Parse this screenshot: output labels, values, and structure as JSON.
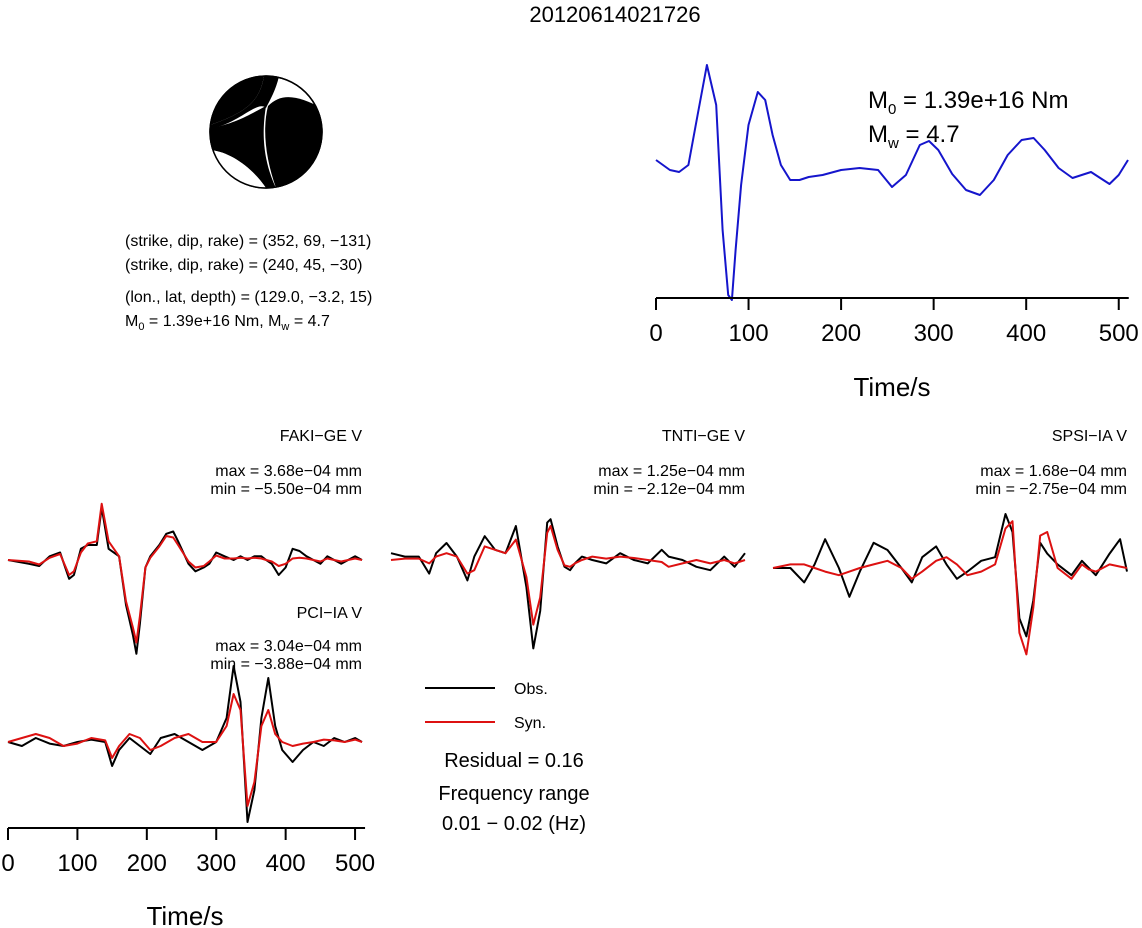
{
  "title": "20120614021726",
  "colors": {
    "observed": "#000000",
    "synthetic": "#dd1111",
    "stf": "#1515cc",
    "beachball_fill": "#000000"
  },
  "source": {
    "planes": [
      "(strike, dip, rake) = (352, 69, −131)",
      "(strike, dip, rake) = (240, 45, −30)"
    ],
    "location": "(lon., lat, depth) = (129.0, −3.2, 15)",
    "moment_main": "M",
    "moment_sub": "0",
    "moment_rest": " = 1.39e+16 Nm, M",
    "mw_sub": "w",
    "mw_rest": " = 4.7",
    "strike1": 352,
    "dip1": 69,
    "rake1": -131,
    "strike2": 240,
    "dip2": 45,
    "rake2": -30
  },
  "stf_panel": {
    "m0_label": "M",
    "m0_sub": "0",
    "m0_value": " = 1.39e+16 Nm",
    "mw_label": "M",
    "mw_sub": "w",
    "mw_value": " = 4.7",
    "xlabel": "Time/s"
  },
  "legend": {
    "obs": "Obs.",
    "syn": "Syn.",
    "residual": "Residual = 0.16",
    "freq_title": "Frequency range",
    "freq_value": "0.01 − 0.02 (Hz)"
  },
  "stations": [
    {
      "name": "FAKI−GE V",
      "max": "max = 3.68e−04 mm",
      "min": "min = −5.50e−04 mm"
    },
    {
      "name": "TNTI−GE V",
      "max": "max = 1.25e−04 mm",
      "min": "min = −2.12e−04 mm"
    },
    {
      "name": "SPSI−IA V",
      "max": "max = 1.68e−04 mm",
      "min": "min = −2.75e−04 mm"
    },
    {
      "name": "PCI−IA V",
      "max": "max = 3.04e−04 mm",
      "min": "min = −3.88e−04 mm"
    }
  ],
  "chart_data": [
    {
      "type": "line",
      "name": "source time function",
      "xlabel": "Time/s",
      "ylabel": "",
      "xlim": [
        0,
        510
      ],
      "xticks": [
        0,
        100,
        200,
        300,
        400,
        500
      ],
      "series": [
        {
          "x": [
            0,
            15,
            25,
            35,
            45,
            55,
            65,
            72,
            78,
            82,
            86,
            92,
            100,
            110,
            118,
            126,
            135,
            145,
            155,
            165,
            180,
            200,
            220,
            240,
            255,
            270,
            285,
            295,
            305,
            320,
            335,
            350,
            365,
            380,
            395,
            408,
            420,
            435,
            450,
            460,
            470,
            480,
            490,
            500,
            510
          ],
          "y": [
            0,
            -0.1,
            -0.12,
            -0.05,
            0.45,
            0.95,
            0.55,
            -0.7,
            -1.35,
            -1.4,
            -0.9,
            -0.25,
            0.35,
            0.68,
            0.6,
            0.25,
            -0.05,
            -0.2,
            -0.2,
            -0.17,
            -0.15,
            -0.1,
            -0.08,
            -0.1,
            -0.27,
            -0.15,
            0.15,
            0.19,
            0.1,
            -0.14,
            -0.3,
            -0.35,
            -0.2,
            0.05,
            0.2,
            0.22,
            0.1,
            -0.08,
            -0.18,
            -0.15,
            -0.12,
            -0.18,
            -0.24,
            -0.15,
            0
          ]
        }
      ]
    },
    {
      "type": "line",
      "name": "FAKI-GE V",
      "xlim": [
        0,
        510
      ],
      "series": [
        {
          "name": "Obs.",
          "x": [
            0,
            30,
            45,
            60,
            75,
            88,
            95,
            105,
            115,
            128,
            135,
            145,
            160,
            170,
            180,
            185,
            190,
            198,
            205,
            218,
            228,
            238,
            245,
            260,
            270,
            282,
            290,
            300,
            312,
            325,
            335,
            345,
            355,
            365,
            372,
            380,
            390,
            400,
            410,
            420,
            430,
            440,
            450,
            460,
            470,
            480,
            490,
            500,
            510
          ],
          "y": [
            0,
            -0.05,
            -0.08,
            0.05,
            0.1,
            -0.25,
            -0.2,
            0.15,
            0.2,
            0.2,
            0.7,
            0.15,
            0.05,
            -0.6,
            -1.0,
            -1.25,
            -0.85,
            -0.1,
            0.05,
            0.2,
            0.35,
            0.38,
            0.25,
            -0.05,
            -0.15,
            -0.1,
            -0.05,
            0.1,
            0.05,
            0.0,
            0.05,
            0.0,
            0.05,
            0.05,
            0.0,
            -0.05,
            -0.2,
            -0.1,
            0.15,
            0.12,
            0.05,
            0.0,
            -0.05,
            0.05,
            0.0,
            -0.05,
            0.0,
            0.05,
            0.0
          ]
        },
        {
          "name": "Syn.",
          "x": [
            0,
            30,
            45,
            60,
            75,
            88,
            95,
            105,
            115,
            128,
            135,
            145,
            160,
            170,
            180,
            185,
            190,
            198,
            205,
            218,
            228,
            238,
            245,
            260,
            270,
            282,
            290,
            300,
            312,
            325,
            335,
            345,
            355,
            365,
            372,
            380,
            390,
            400,
            410,
            420,
            430,
            440,
            450,
            460,
            470,
            480,
            490,
            500,
            510
          ],
          "y": [
            0,
            -0.02,
            -0.06,
            0.03,
            0.08,
            -0.2,
            -0.15,
            0.1,
            0.22,
            0.25,
            0.75,
            0.25,
            0.05,
            -0.55,
            -0.9,
            -1.1,
            -0.75,
            -0.1,
            0.03,
            0.18,
            0.32,
            0.3,
            0.2,
            -0.02,
            -0.1,
            -0.08,
            -0.02,
            0.06,
            0.02,
            0.02,
            0.03,
            0.02,
            0.03,
            0.02,
            0.0,
            -0.02,
            -0.08,
            -0.05,
            0.02,
            0.03,
            0.02,
            0.0,
            -0.02,
            0.02,
            0.0,
            -0.02,
            0.0,
            0.02,
            0.0
          ]
        }
      ]
    },
    {
      "type": "line",
      "name": "TNTI-GE V",
      "xlim": [
        0,
        510
      ],
      "series": [
        {
          "name": "Obs.",
          "x": [
            0,
            20,
            40,
            55,
            65,
            80,
            95,
            110,
            120,
            135,
            150,
            165,
            180,
            195,
            205,
            215,
            225,
            230,
            240,
            250,
            258,
            265,
            275,
            290,
            310,
            330,
            350,
            370,
            390,
            400,
            420,
            440,
            460,
            480,
            495,
            510
          ],
          "y": [
            0.1,
            0.05,
            0.05,
            -0.2,
            0.1,
            0.25,
            0.05,
            -0.3,
            0.05,
            0.35,
            0.15,
            0.1,
            0.5,
            -0.4,
            -1.3,
            -0.75,
            0.55,
            0.6,
            0.2,
            -0.1,
            -0.15,
            -0.05,
            0.05,
            0.0,
            -0.05,
            0.1,
            0.0,
            -0.05,
            0.15,
            0.05,
            0.0,
            -0.1,
            -0.15,
            0.05,
            -0.1,
            0.1
          ]
        },
        {
          "name": "Syn.",
          "x": [
            0,
            20,
            40,
            55,
            65,
            80,
            95,
            110,
            120,
            135,
            150,
            165,
            180,
            195,
            205,
            215,
            225,
            230,
            240,
            250,
            258,
            265,
            275,
            290,
            310,
            330,
            350,
            370,
            390,
            400,
            420,
            440,
            460,
            480,
            495,
            510
          ],
          "y": [
            0.0,
            0.02,
            0.02,
            -0.05,
            0.05,
            0.1,
            0.05,
            -0.2,
            -0.15,
            0.2,
            0.15,
            0.1,
            0.3,
            -0.25,
            -0.95,
            -0.55,
            0.4,
            0.5,
            0.15,
            -0.08,
            -0.1,
            -0.05,
            0.0,
            0.05,
            0.02,
            0.05,
            0.03,
            0.0,
            -0.03,
            -0.1,
            -0.05,
            0.0,
            -0.05,
            0.0,
            -0.05,
            0.0
          ]
        }
      ]
    },
    {
      "type": "line",
      "name": "SPSI-IA V",
      "xlim": [
        0,
        510
      ],
      "series": [
        {
          "name": "Obs.",
          "x": [
            0,
            25,
            45,
            60,
            75,
            95,
            110,
            125,
            145,
            165,
            185,
            200,
            215,
            235,
            250,
            265,
            280,
            300,
            320,
            335,
            345,
            355,
            365,
            375,
            385,
            395,
            410,
            430,
            445,
            455,
            465,
            475,
            485,
            500,
            510
          ],
          "y": [
            0.0,
            0.0,
            -0.2,
            0.05,
            0.4,
            0.0,
            -0.4,
            -0.05,
            0.35,
            0.25,
            0.0,
            -0.2,
            0.15,
            0.3,
            0.05,
            -0.15,
            -0.05,
            0.1,
            0.15,
            0.75,
            0.5,
            -0.7,
            -0.95,
            -0.45,
            0.35,
            0.2,
            0.05,
            -0.1,
            0.1,
            0.0,
            -0.1,
            0.05,
            0.2,
            0.4,
            -0.05
          ]
        },
        {
          "name": "Syn.",
          "x": [
            0,
            25,
            45,
            60,
            75,
            95,
            110,
            125,
            145,
            165,
            185,
            200,
            215,
            235,
            250,
            265,
            280,
            300,
            320,
            335,
            345,
            355,
            365,
            375,
            385,
            395,
            410,
            430,
            445,
            455,
            465,
            475,
            485,
            500,
            510
          ],
          "y": [
            0.0,
            0.05,
            0.05,
            0.0,
            -0.05,
            -0.1,
            -0.05,
            0.0,
            0.05,
            0.1,
            0.0,
            -0.15,
            -0.05,
            0.1,
            0.15,
            0.05,
            -0.1,
            -0.05,
            0.05,
            0.55,
            0.65,
            -0.9,
            -1.2,
            -0.55,
            0.45,
            0.5,
            0.0,
            -0.15,
            0.05,
            -0.02,
            -0.05,
            0.0,
            0.05,
            0.02,
            0.0
          ]
        }
      ]
    },
    {
      "type": "line",
      "name": "PCI-IA V",
      "xlabel": "Time/s",
      "xlim": [
        0,
        510
      ],
      "xticks": [
        0,
        100,
        200,
        300,
        400,
        500
      ],
      "series": [
        {
          "name": "Obs.",
          "x": [
            0,
            20,
            40,
            60,
            80,
            100,
            120,
            140,
            150,
            160,
            175,
            190,
            205,
            220,
            240,
            260,
            280,
            300,
            315,
            325,
            335,
            345,
            355,
            365,
            375,
            385,
            395,
            410,
            425,
            440,
            455,
            470,
            485,
            500,
            510
          ],
          "y": [
            0.0,
            -0.05,
            0.05,
            -0.02,
            -0.05,
            0.0,
            0.03,
            0.0,
            -0.3,
            -0.1,
            0.05,
            -0.05,
            -0.15,
            0.05,
            0.1,
            0.0,
            -0.1,
            0.0,
            0.3,
            0.95,
            0.5,
            -1.0,
            -0.6,
            0.3,
            0.8,
            0.2,
            -0.1,
            -0.25,
            -0.1,
            0.0,
            -0.05,
            0.05,
            0.0,
            0.05,
            0.0
          ]
        },
        {
          "name": "Syn.",
          "x": [
            0,
            20,
            40,
            60,
            80,
            100,
            120,
            140,
            150,
            160,
            175,
            190,
            205,
            220,
            240,
            260,
            280,
            300,
            315,
            325,
            335,
            345,
            355,
            365,
            375,
            385,
            395,
            410,
            425,
            440,
            455,
            470,
            485,
            500,
            510
          ],
          "y": [
            0.0,
            0.05,
            0.1,
            0.05,
            -0.05,
            -0.02,
            0.05,
            0.02,
            -0.2,
            -0.05,
            0.1,
            0.05,
            -0.1,
            -0.05,
            0.05,
            0.1,
            0.0,
            0.0,
            0.2,
            0.6,
            0.4,
            -0.8,
            -0.5,
            0.2,
            0.4,
            0.1,
            0.0,
            -0.05,
            -0.02,
            0.0,
            0.03,
            0.02,
            0.0,
            0.03,
            0.0
          ]
        }
      ]
    }
  ]
}
